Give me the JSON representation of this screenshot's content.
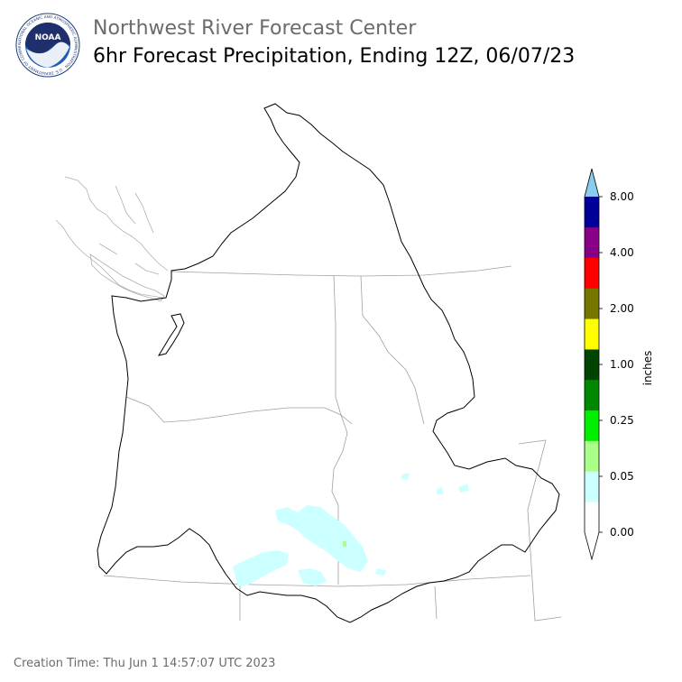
{
  "header": {
    "agency": "Northwest River Forecast Center",
    "product": "6hr Forecast Precipitation, Ending 12Z, 06/07/23"
  },
  "logo": {
    "text": "NOAA",
    "ring_text": "NATIONAL OCEANIC AND ATMOSPHERIC ADMINISTRATION · U.S. DEPARTMENT OF COMMERCE"
  },
  "legend": {
    "unit_label": "inches",
    "ticks": [
      "8.00",
      "4.00",
      "2.00",
      "1.00",
      "0.25",
      "0.05",
      "0.00"
    ],
    "colors": [
      "#ffffff",
      "#ccffff",
      "#aaff88",
      "#00ee00",
      "#008800",
      "#004400",
      "#ffff00",
      "#777700",
      "#ff0000",
      "#880088",
      "#000099",
      "#0044ff",
      "#88ccee"
    ]
  },
  "footer": {
    "creation_time": "Creation Time: Thu Jun 1 14:57:07 UTC 2023"
  }
}
